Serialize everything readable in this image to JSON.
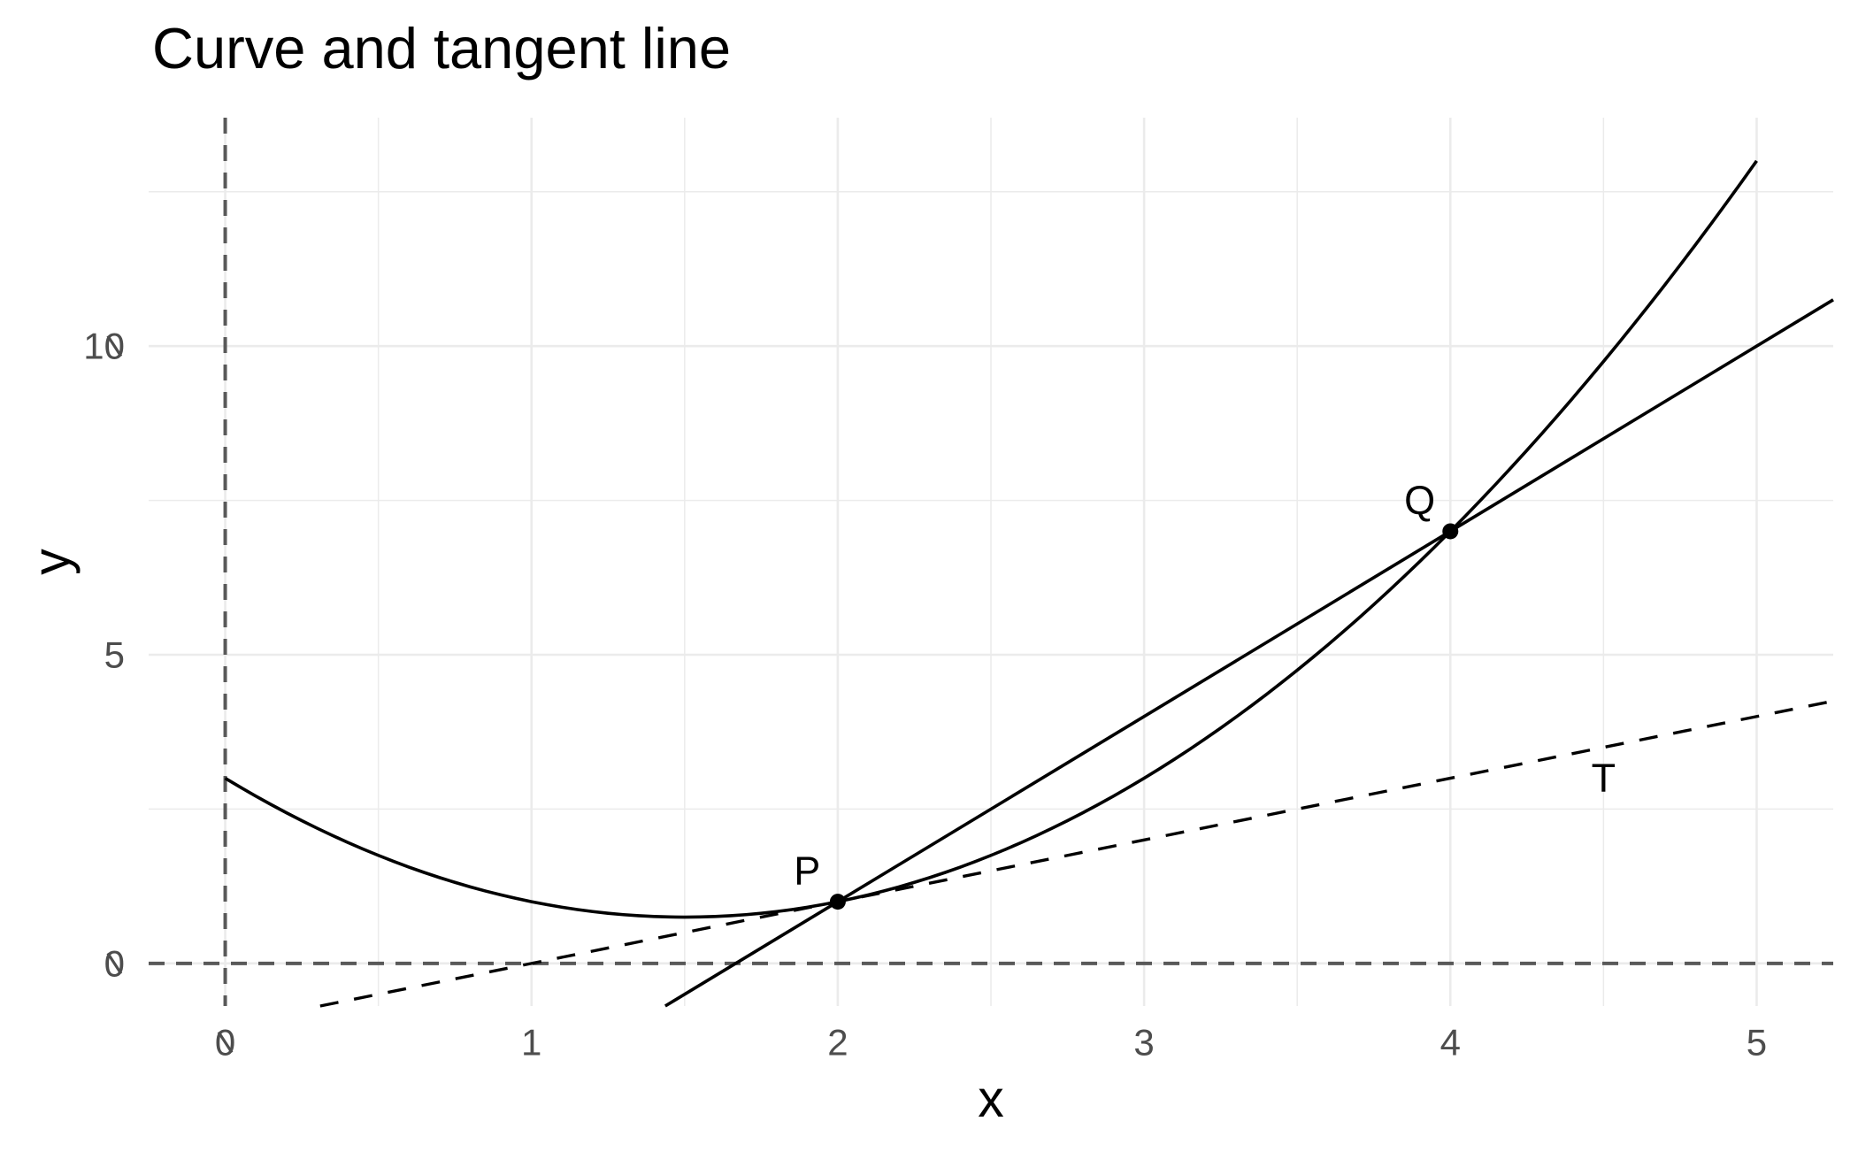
{
  "chart_data": {
    "type": "line",
    "title": "Curve and tangent line",
    "xlabel": "x",
    "ylabel": "y",
    "xlim": [
      -0.25,
      5.25
    ],
    "ylim": [
      -0.69,
      13.7
    ],
    "x_ticks": {
      "values": [
        0,
        1,
        2,
        3,
        4,
        5
      ],
      "labels": [
        "0",
        "1",
        "2",
        "3",
        "4",
        "5"
      ]
    },
    "y_ticks": {
      "values": [
        0,
        5,
        10
      ],
      "labels": [
        "0",
        "5",
        "10"
      ]
    },
    "grid": {
      "major": true,
      "minor": true,
      "background": "white"
    },
    "legend": "none",
    "series": [
      {
        "name": "curve",
        "kind": "quadratic",
        "coefficients": {
          "a": 1,
          "b": -3,
          "c": 3
        },
        "x_range": [
          0,
          5
        ],
        "line_style": "solid",
        "color": "#000000"
      },
      {
        "name": "secant-line",
        "kind": "abline",
        "slope": 3,
        "intercept": -5,
        "line_style": "solid",
        "color": "#000000"
      },
      {
        "name": "tangent-line",
        "kind": "abline",
        "slope": 1,
        "intercept": -1,
        "line_style": "dashed",
        "color": "#000000"
      },
      {
        "name": "zero-hline",
        "kind": "hline",
        "y": 0,
        "line_style": "dashed",
        "color": "#595959"
      },
      {
        "name": "zero-vline",
        "kind": "vline",
        "x": 0,
        "line_style": "dashed",
        "color": "#595959"
      }
    ],
    "points": [
      {
        "label": "P",
        "x": 2,
        "y": 1
      },
      {
        "label": "Q",
        "x": 4,
        "y": 7
      }
    ],
    "annotations": [
      {
        "text": "P",
        "x": 1.9,
        "y": 1.5
      },
      {
        "text": "Q",
        "x": 3.9,
        "y": 7.5
      },
      {
        "text": "T",
        "x": 4.5,
        "y": 3
      }
    ],
    "colors": {
      "grid": "#EBEBEB",
      "axis_text": "#4D4D4D",
      "title": "#000000",
      "series": "#000000",
      "zero_lines": "#595959",
      "background": "#FFFFFF"
    }
  }
}
